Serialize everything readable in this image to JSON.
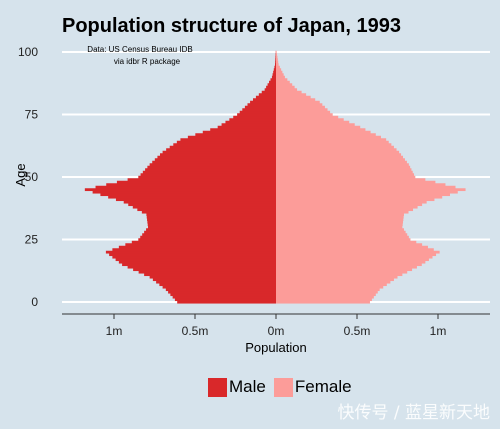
{
  "chart_data": {
    "type": "bar",
    "orientation": "horizontal-pyramid",
    "title": "Population structure of Japan, 1993",
    "annotation": [
      "Data: US Census Bureau IDB",
      "via idbr R package"
    ],
    "xlabel": "Population",
    "ylabel": "Age",
    "xlim": [
      -1300000,
      1300000
    ],
    "ylim": [
      -5,
      100
    ],
    "x_ticks": [
      {
        "value": -1000000,
        "label": "1m"
      },
      {
        "value": -500000,
        "label": "0.5m"
      },
      {
        "value": 0,
        "label": "0m"
      },
      {
        "value": 500000,
        "label": "0.5m"
      },
      {
        "value": 1000000,
        "label": "1m"
      }
    ],
    "y_ticks": [
      0,
      25,
      50,
      75,
      100
    ],
    "grid": "horizontal major only",
    "legend_position": "bottom",
    "series": [
      {
        "name": "Male",
        "color": "#d9282a"
      },
      {
        "name": "Female",
        "color": "#fc9c99"
      }
    ],
    "age_groups": [
      {
        "age": 0,
        "male": 610000,
        "female": 580000
      },
      {
        "age": 5,
        "male": 680000,
        "female": 640000
      },
      {
        "age": 10,
        "male": 780000,
        "female": 750000
      },
      {
        "age": 15,
        "male": 950000,
        "female": 900000
      },
      {
        "age": 20,
        "male": 1050000,
        "female": 1010000
      },
      {
        "age": 25,
        "male": 850000,
        "female": 830000
      },
      {
        "age": 30,
        "male": 790000,
        "female": 780000
      },
      {
        "age": 35,
        "male": 800000,
        "female": 790000
      },
      {
        "age": 40,
        "male": 940000,
        "female": 930000
      },
      {
        "age": 45,
        "male": 1180000,
        "female": 1170000
      },
      {
        "age": 50,
        "male": 850000,
        "female": 860000
      },
      {
        "age": 55,
        "male": 780000,
        "female": 820000
      },
      {
        "age": 60,
        "male": 700000,
        "female": 760000
      },
      {
        "age": 65,
        "male": 590000,
        "female": 680000
      },
      {
        "age": 70,
        "male": 360000,
        "female": 520000
      },
      {
        "age": 75,
        "male": 240000,
        "female": 350000
      },
      {
        "age": 80,
        "male": 160000,
        "female": 270000
      },
      {
        "age": 85,
        "male": 70000,
        "female": 130000
      },
      {
        "age": 90,
        "male": 25000,
        "female": 55000
      },
      {
        "age": 95,
        "male": 6000,
        "female": 16000
      },
      {
        "age": 100,
        "male": 1500,
        "female": 4000
      }
    ]
  },
  "legend": {
    "male_label": "Male",
    "female_label": "Female"
  },
  "watermark": "快传号 / 蓝星新天地"
}
